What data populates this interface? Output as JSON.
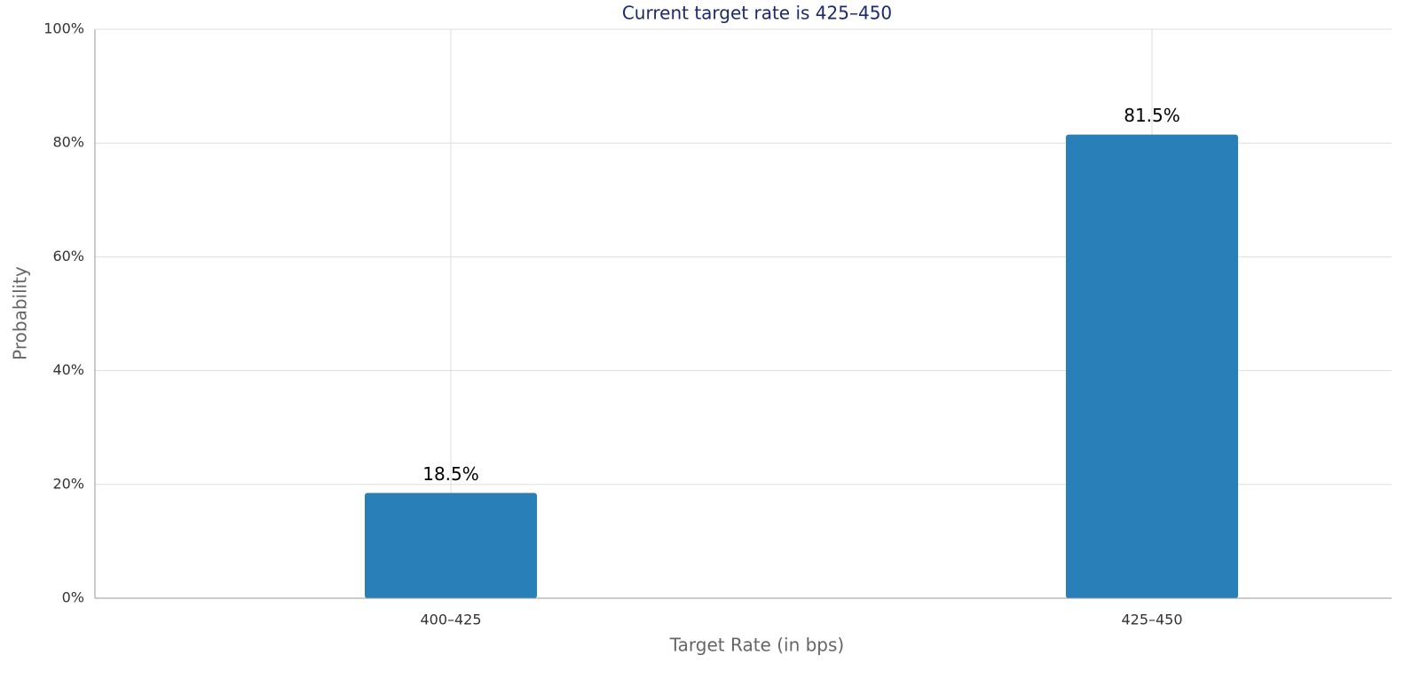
{
  "chart_data": {
    "type": "bar",
    "title": "Current target rate is 425–450",
    "x_label": "Target Rate (in bps)",
    "y_label": "Probability",
    "categories": [
      "400–425",
      "425–450"
    ],
    "values": [
      18.5,
      81.5
    ],
    "value_labels": [
      "18.5%",
      "81.5%"
    ],
    "color": "#2980b9",
    "ylim": [
      0,
      100
    ],
    "yticks": [
      {
        "value": 0,
        "label": "0%"
      },
      {
        "value": 20,
        "label": "20%"
      },
      {
        "value": 40,
        "label": "40%"
      },
      {
        "value": 60,
        "label": "60%"
      },
      {
        "value": 80,
        "label": "80%"
      },
      {
        "value": 100,
        "label": "100%"
      }
    ],
    "grid": true
  }
}
